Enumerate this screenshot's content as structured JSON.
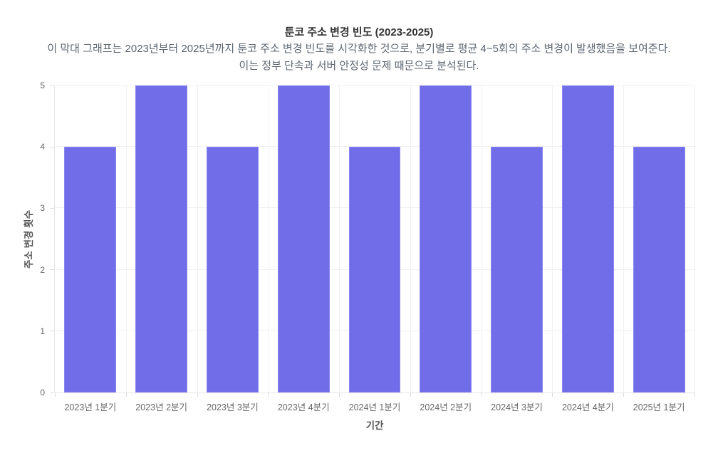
{
  "page": {
    "background": "#ffffff"
  },
  "chart_data": {
    "type": "bar",
    "title": "툰코 주소 변경 빈도 (2023-2025)",
    "subtitle_lines": [
      "이 막대 그래프는 2023년부터 2025년까지 툰코 주소 변경 빈도를 시각화한 것으로, 분기별로 평균 4~5회의 주소 변경이 발생했음을 보여준다.",
      "이는 정부 단속과 서버 안정성 문제 때문으로 분석된다."
    ],
    "categories": [
      "2023년 1분기",
      "2023년 2분기",
      "2023년 3분기",
      "2023년 4분기",
      "2024년 1분기",
      "2024년 2분기",
      "2024년 3분기",
      "2024년 4분기",
      "2025년 1분기"
    ],
    "values": [
      4,
      5,
      4,
      5,
      4,
      5,
      4,
      5,
      4
    ],
    "xlabel": "기간",
    "ylabel": "주소 변경 횟수",
    "ylim": [
      0,
      5
    ],
    "yticks": [
      0,
      1,
      2,
      3,
      4,
      5
    ],
    "grid": true,
    "legend": "none",
    "bar_width_fraction": 0.73,
    "colors": {
      "bar_fill": "#716de8",
      "bar_border": "#8b87ef",
      "grid": "#f0f0f0",
      "axis_line": "#e6e6e6",
      "tick_mark": "#dddddd",
      "title_text": "#333333",
      "subtitle_text": "#5d6670",
      "tick_text": "#666666",
      "axis_title_text": "#555555"
    }
  }
}
